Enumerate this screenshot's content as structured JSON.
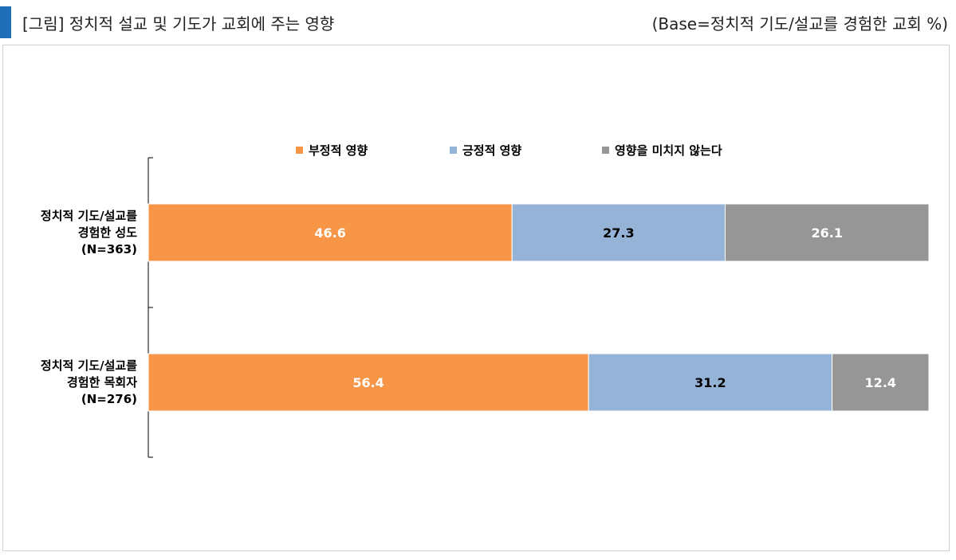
{
  "header": {
    "title": "[그림] 정치적 설교 및 기도가 교회에 주는 영향",
    "base_note": "(Base=정치적 기도/설교를 경험한 교회 %)"
  },
  "chart_data": {
    "type": "bar",
    "orientation": "horizontal",
    "stacked": true,
    "title": "[그림] 정치적 설교 및 기도가 교회에 주는 영향",
    "note": "(Base=정치적 기도/설교를 경험한 교회 %)",
    "legend_position": "top",
    "grid": false,
    "xlim": [
      0,
      100
    ],
    "categories": [
      [
        "정치적 기도/설교를",
        "경험한 성도",
        "(N=363)"
      ],
      [
        "정치적 기도/설교를",
        "경험한 목회자",
        "(N=276)"
      ]
    ],
    "series": [
      {
        "name": "부정적 영향",
        "color": "#f79646",
        "label_color": "#ffffff",
        "values": [
          46.6,
          56.4
        ]
      },
      {
        "name": "긍정적 영향",
        "color": "#95b3d7",
        "label_color": "#000000",
        "values": [
          27.3,
          31.2
        ]
      },
      {
        "name": "영향을 미치지 않는다",
        "color": "#969696",
        "label_color": "#ffffff",
        "values": [
          26.1,
          12.4
        ]
      }
    ]
  }
}
